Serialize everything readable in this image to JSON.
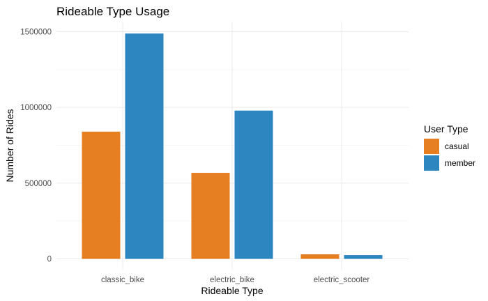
{
  "chart_data": {
    "type": "bar",
    "title": "Rideable Type Usage",
    "xlabel": "Rideable Type",
    "ylabel": "Number of Rides",
    "categories": [
      "classic_bike",
      "electric_bike",
      "electric_scooter"
    ],
    "series": [
      {
        "name": "casual",
        "values": [
          840000,
          568000,
          30000
        ],
        "color": "#E67E22"
      },
      {
        "name": "member",
        "values": [
          1488000,
          979000,
          25000
        ],
        "color": "#2E86C1"
      }
    ],
    "ylim": [
      0,
      1500000
    ],
    "yticks": [
      0,
      500000,
      1000000,
      1500000
    ],
    "ytick_labels": [
      "0",
      "500000",
      "1000000",
      "1500000"
    ],
    "grid": true,
    "legend": {
      "title": "User Type",
      "placement": "right"
    }
  }
}
